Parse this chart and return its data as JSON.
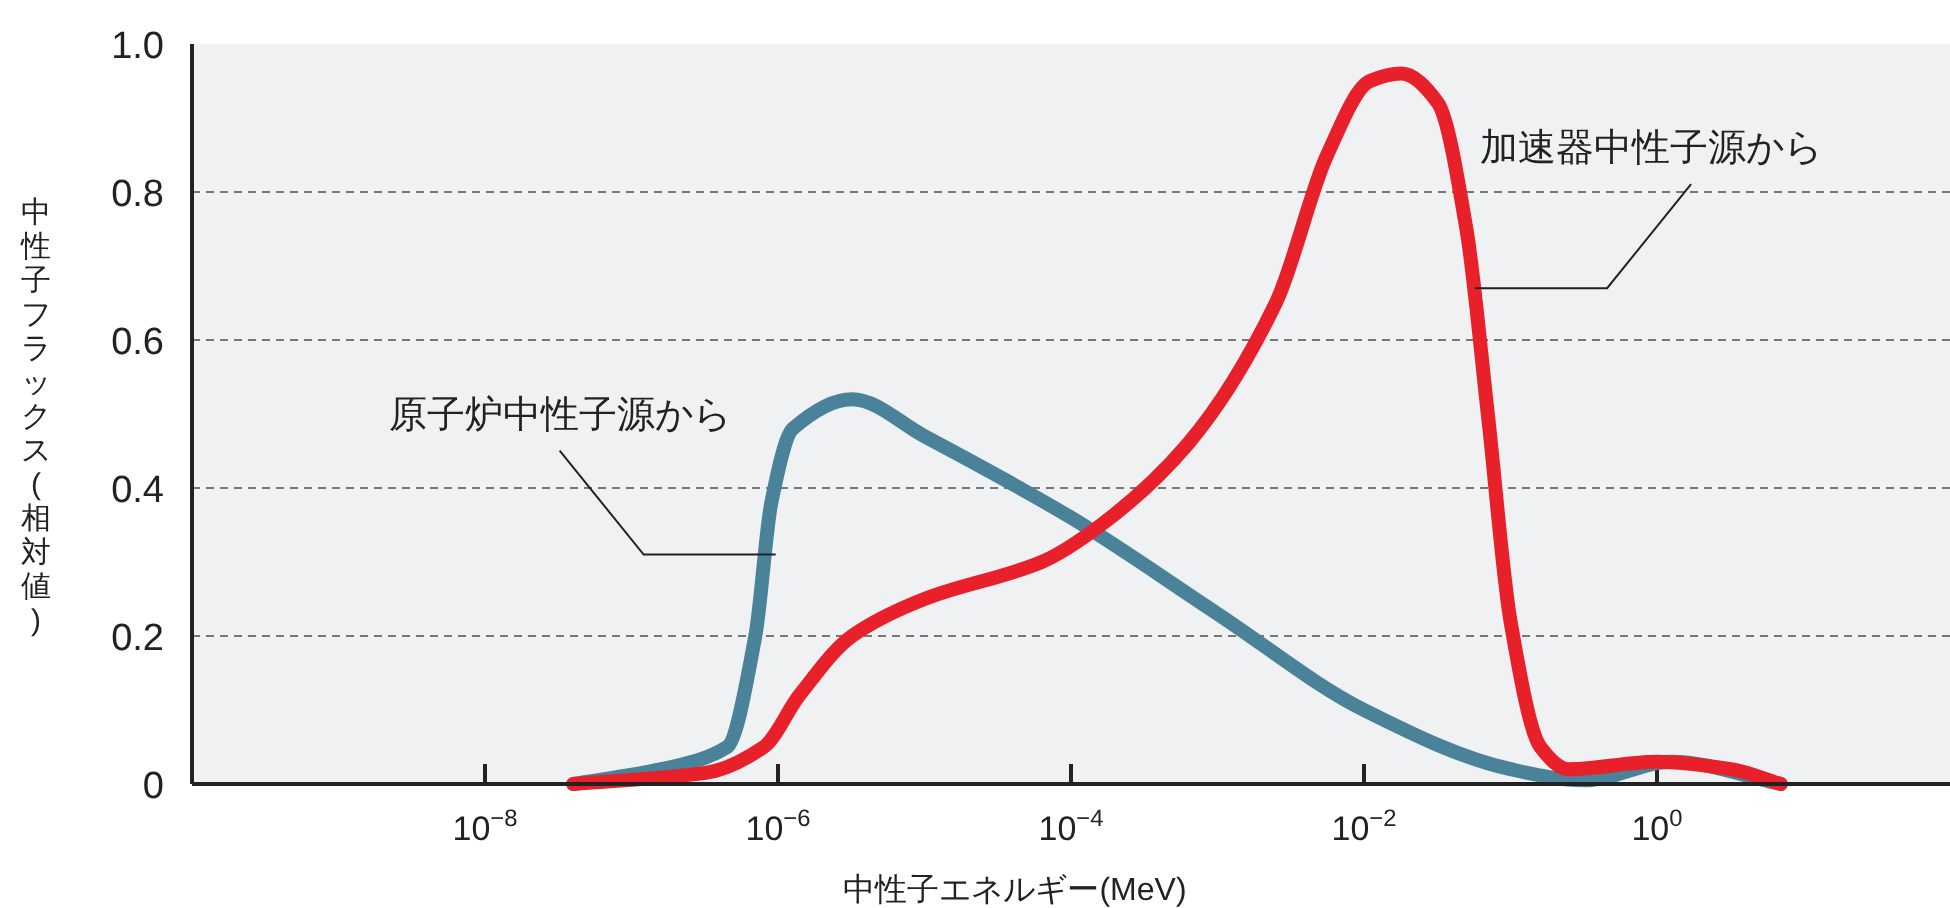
{
  "chart_data": {
    "type": "line",
    "xlabel": "中性子エネルギー(MeV)",
    "ylabel": "中性子フラックス(相対値)",
    "log": "x",
    "xlim": [
      1e-10,
      100
    ],
    "xticks": [
      {
        "value": 1e-08,
        "label": "10$^{−8}$"
      },
      {
        "value": 1e-06,
        "label": "10$^{−6}$"
      },
      {
        "value": 0.0001,
        "label": "10$^{−4}$"
      },
      {
        "value": 0.01,
        "label": "10$^{−2}$"
      },
      {
        "value": 1,
        "label": "10$^{0}$"
      }
    ],
    "ylim": [
      0,
      1
    ],
    "yticks": [
      0,
      {
        "value": 0.2,
        "label": "0.2"
      },
      {
        "value": 0.4,
        "label": "0.4"
      },
      {
        "value": 0.6,
        "label": "0.6"
      },
      {
        "value": 0.8,
        "label": "0.8"
      },
      {
        "value": 1,
        "label": "1.0"
      }
    ],
    "grid": "y",
    "line_style": "solid",
    "marker": "none",
    "series": [
      {
        "color": "#4a8299",
        "x": [
          4e-08,
          1.6e-07,
          4.5e-07,
          7e-07,
          9e-07,
          1.26e-06,
          3.2e-06,
          1e-05,
          0.0001,
          0.001,
          0.01,
          0.1,
          0.32,
          1.26,
          7
        ],
        "values": [
          0,
          0.02,
          0.05,
          0.2,
          0.38,
          0.48,
          0.52,
          0.47,
          0.36,
          0.23,
          0.1,
          0.02,
          0.005,
          0.03,
          0
        ]
      },
      {
        "color": "#e8202a",
        "x": [
          4e-08,
          3.2e-07,
          8e-07,
          1.4e-06,
          3.2e-06,
          1e-05,
          6.3e-05,
          0.00016,
          0.00063,
          0.0025,
          0.0056,
          0.011,
          0.018,
          0.032,
          0.05,
          0.07,
          0.1,
          0.16,
          0.25,
          1,
          3.2,
          7
        ],
        "values": [
          0,
          0.015,
          0.05,
          0.12,
          0.2,
          0.25,
          0.3,
          0.35,
          0.46,
          0.65,
          0.85,
          0.95,
          0.96,
          0.92,
          0.75,
          0.5,
          0.22,
          0.05,
          0.02,
          0.03,
          0.02,
          0
        ]
      }
    ],
    "annotations": [
      {
        "text": "原子炉中性子源から",
        "x": 8.5e-07,
        "y": 0.31
      },
      {
        "text": "加速器中性子源から",
        "x": 0.065,
        "y": 0.67
      }
    ]
  }
}
